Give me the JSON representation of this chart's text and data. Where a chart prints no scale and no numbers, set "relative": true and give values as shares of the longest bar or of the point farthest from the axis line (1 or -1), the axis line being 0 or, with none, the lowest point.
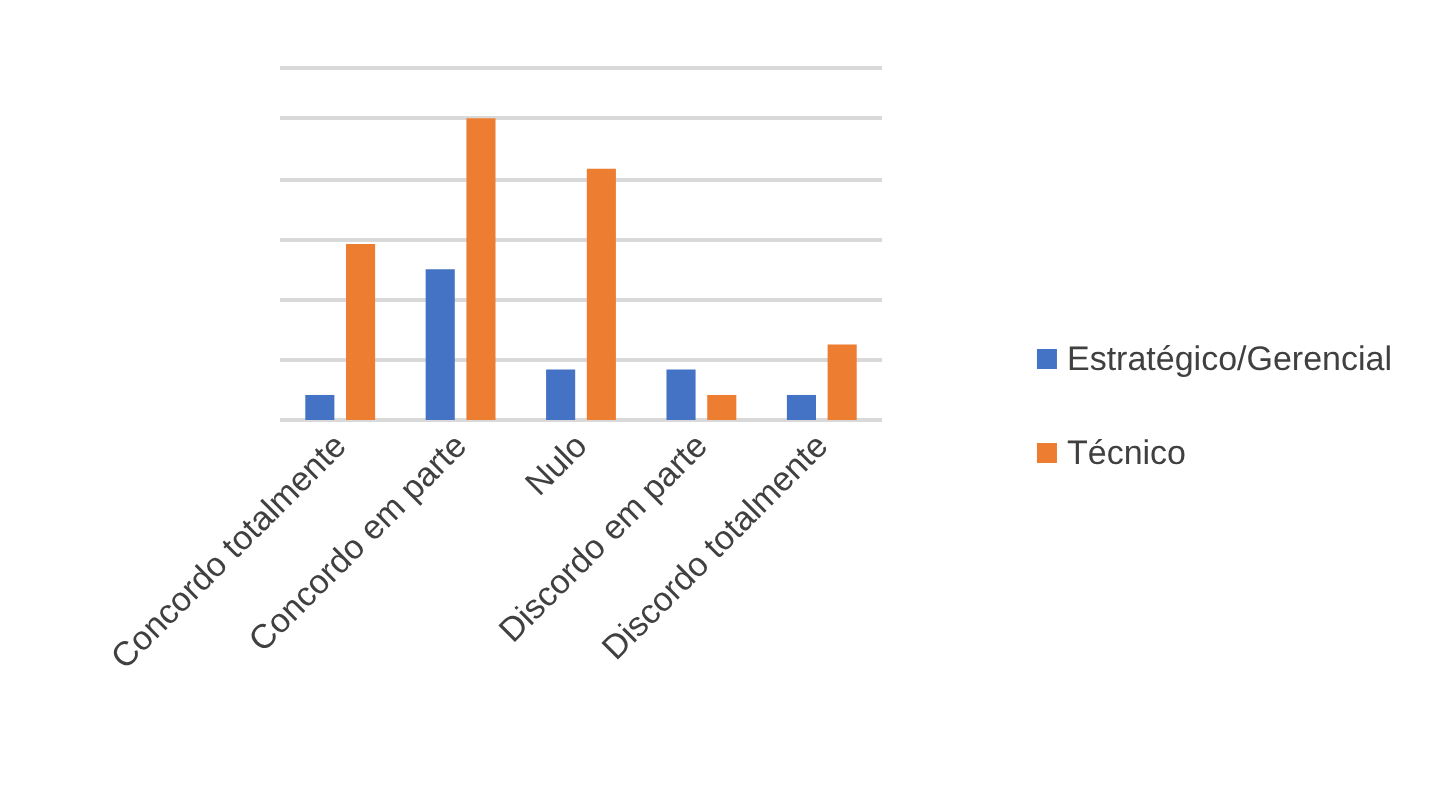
{
  "chart_data": {
    "type": "bar",
    "relative": true,
    "grid": "y",
    "legend": "right",
    "categories": [
      "Concordo totalmente",
      "Concordo em parte",
      "Nulo",
      "Discordo em parte",
      "Discordo totalmente"
    ],
    "series": [
      {
        "name": "Estratégico/Gerencial",
        "color": "#4472c4",
        "values": [
          0.083,
          0.5,
          0.167,
          0.167,
          0.083
        ]
      },
      {
        "name": "Técnico",
        "color": "#ed7d31",
        "values": [
          0.583,
          1,
          0.833,
          0.083,
          0.25
        ]
      }
    ]
  }
}
